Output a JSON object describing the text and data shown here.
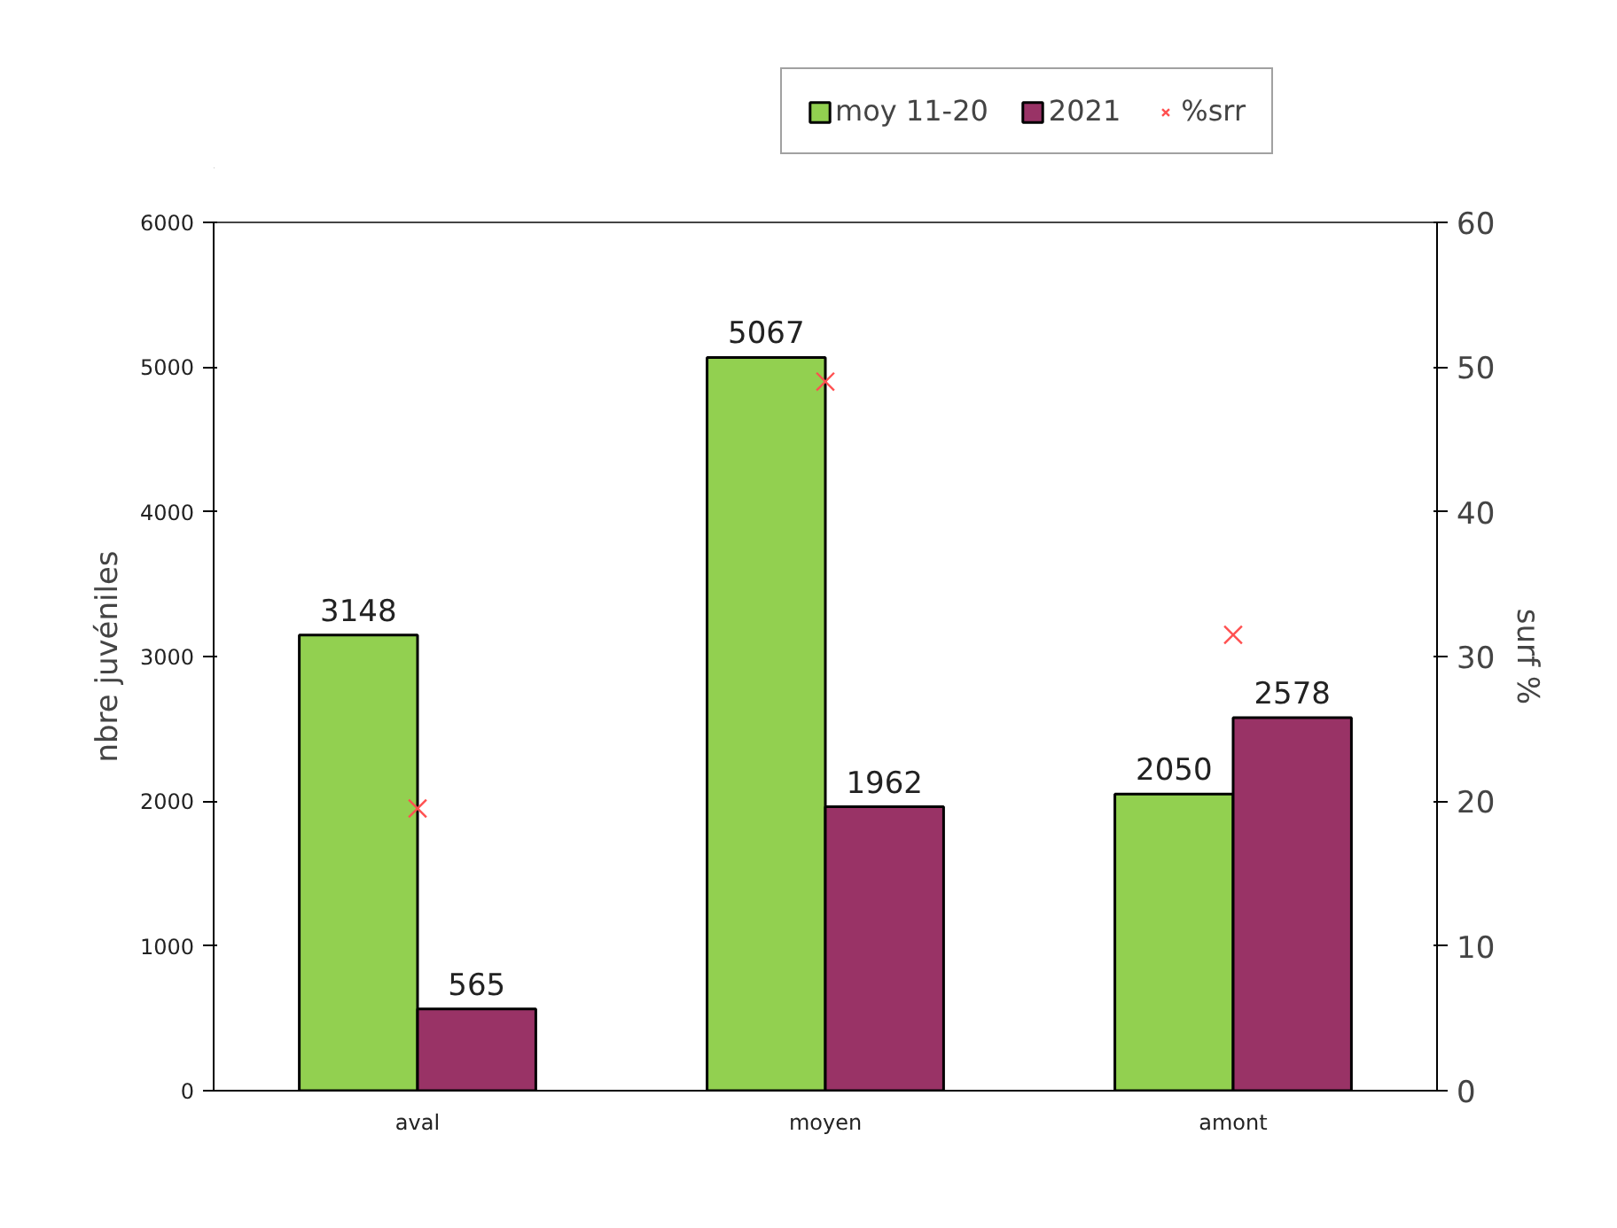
{
  "chart_data": {
    "type": "bar",
    "categories": [
      "aval",
      "moyen",
      "amont"
    ],
    "ylabel": "nbre juvéniles",
    "y2label": "surf %",
    "ylim": [
      0,
      6000
    ],
    "yticks": [
      0,
      1000,
      2000,
      3000,
      4000,
      5000,
      6000
    ],
    "y2lim": [
      0,
      60
    ],
    "y2ticks": [
      0,
      10,
      20,
      30,
      40,
      50,
      60
    ],
    "series": [
      {
        "name": "moy 11-20",
        "color": "#92d050",
        "values": [
          3148,
          5067,
          2050
        ],
        "value_labels": [
          "3148",
          "5067",
          "2050"
        ]
      },
      {
        "name": "2021",
        "color": "#993366",
        "values": [
          565,
          1962,
          2578
        ],
        "value_labels": [
          "565",
          "1962",
          "2578"
        ]
      },
      {
        "name": "%srr",
        "type": "scatter",
        "axis": "y2",
        "marker": "cross",
        "color": "#ff5050",
        "values": [
          19.5,
          49,
          31.5
        ]
      }
    ],
    "grid": false,
    "legend": "top right"
  }
}
